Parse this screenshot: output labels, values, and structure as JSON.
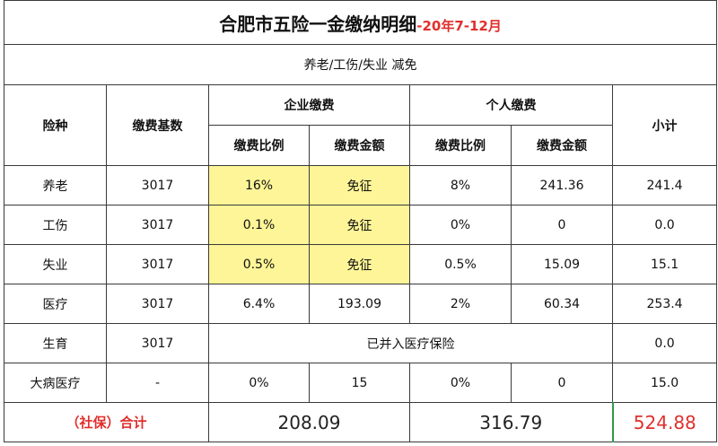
{
  "title": "合肥市五险一金缴纳明细",
  "period": "-20年7-12月",
  "subtitle": "养老/工伤/失业 减免",
  "headers": {
    "insurance_type": "险种",
    "base": "缴费基数",
    "company": "企业缴费",
    "personal": "个人缴费",
    "subtotal": "小计",
    "company_rate": "缴费比例",
    "company_amount": "缴费金额",
    "personal_rate": "缴费比例",
    "personal_amount": "缴费金额"
  },
  "rows": [
    {
      "type": "养老",
      "base": "3017",
      "company_rate": "16%",
      "company_amount": "免征",
      "personal_rate": "8%",
      "personal_amount": "241.36",
      "subtotal": "241.4",
      "highlight": true
    },
    {
      "type": "工伤",
      "base": "3017",
      "company_rate": "0.1%",
      "company_amount": "免征",
      "personal_rate": "0%",
      "personal_amount": "0",
      "subtotal": "0.0",
      "highlight": true
    },
    {
      "type": "失业",
      "base": "3017",
      "company_rate": "0.5%",
      "company_amount": "免征",
      "personal_rate": "0.5%",
      "personal_amount": "15.09",
      "subtotal": "15.1",
      "highlight": true
    },
    {
      "type": "医疗",
      "base": "3017",
      "company_rate": "6.4%",
      "company_amount": "193.09",
      "personal_rate": "2%",
      "personal_amount": "60.34",
      "subtotal": "253.4",
      "highlight": false
    }
  ],
  "maternity": {
    "type": "生育",
    "base": "3017",
    "note": "已并入医疗保险",
    "subtotal": "0.0"
  },
  "critical": {
    "type": "大病医疗",
    "base": "-",
    "company_rate": "0%",
    "company_amount": "15",
    "personal_rate": "0%",
    "personal_amount": "0",
    "subtotal": "15.0"
  },
  "total": {
    "label": "（社保）合计",
    "company": "208.09",
    "personal": "316.79",
    "grand": "524.88"
  },
  "colors": {
    "highlight": "#fdf597",
    "accent_red": "#e0302d",
    "grid": "#3a3a3a"
  }
}
